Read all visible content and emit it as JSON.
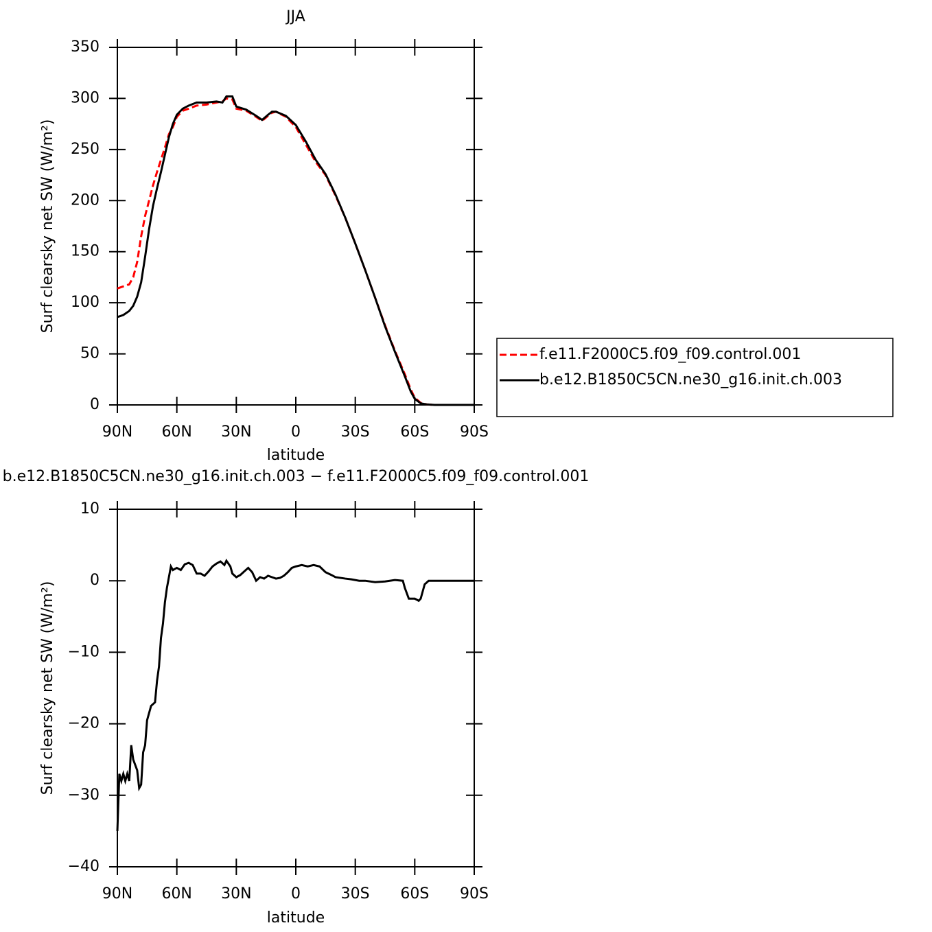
{
  "chart_data": [
    {
      "type": "line",
      "title": "JJA",
      "xlabel": "latitude",
      "ylabel": "Surf clearsky net SW (W/m²)",
      "x": [
        90,
        87,
        84,
        82,
        80,
        78,
        76,
        74,
        72,
        70,
        68,
        66,
        64,
        62,
        60,
        57,
        54,
        50,
        45,
        40,
        37,
        35,
        32,
        30,
        25,
        20,
        17,
        14,
        12,
        10,
        5,
        0,
        -5,
        -10,
        -15,
        -20,
        -25,
        -30,
        -35,
        -40,
        -45,
        -50,
        -55,
        -58,
        -60,
        -63,
        -66,
        -70,
        -80,
        -90
      ],
      "xlim": [
        90,
        -90
      ],
      "xticks": [
        {
          "value": 90,
          "label": "90N"
        },
        {
          "value": 60,
          "label": "60N"
        },
        {
          "value": 30,
          "label": "30N"
        },
        0,
        {
          "value": -30,
          "label": "30S"
        },
        {
          "value": -60,
          "label": "60S"
        },
        {
          "value": -90,
          "label": "90S"
        }
      ],
      "ylim": [
        0,
        350
      ],
      "yticks": [
        0,
        50,
        100,
        150,
        200,
        250,
        300,
        350
      ],
      "legend": "right",
      "series": [
        {
          "name": "f.e11.F2000C5.f09_f09.control.001",
          "color": "#ff0000",
          "linestyle": "dashed",
          "values": [
            114,
            116,
            118,
            125,
            140,
            165,
            185,
            200,
            215,
            228,
            240,
            252,
            265,
            272,
            282,
            288,
            290,
            293,
            294,
            296,
            297,
            300,
            299,
            290,
            288,
            282,
            278,
            283,
            286,
            287,
            282,
            272,
            255,
            238,
            225,
            205,
            183,
            158,
            132,
            105,
            78,
            53,
            30,
            15,
            7,
            2,
            0.5,
            0,
            0,
            0
          ]
        },
        {
          "name": "b.e12.B1850C5CN.ne30_g16.init.ch.003",
          "color": "#000000",
          "linestyle": "solid",
          "values": [
            86,
            88,
            92,
            97,
            106,
            120,
            145,
            172,
            195,
            212,
            228,
            245,
            262,
            275,
            284,
            290,
            293,
            296,
            296,
            297,
            296,
            302,
            302,
            292,
            289,
            283,
            279,
            284,
            287,
            287,
            283,
            274,
            258,
            240,
            226,
            206,
            183,
            158,
            132,
            105,
            77,
            52,
            28,
            13,
            6,
            1.5,
            0.5,
            0,
            0,
            0
          ]
        }
      ]
    },
    {
      "type": "line",
      "title": "b.e12.B1850C5CN.ne30_g16.init.ch.003 − f.e11.F2000C5.f09_f09.control.001",
      "xlabel": "latitude",
      "ylabel": "Surf clearsky net SW (W/m²)",
      "x": [
        90,
        89,
        88,
        87,
        86,
        85,
        84,
        83,
        82,
        80,
        79,
        78,
        77,
        76,
        75,
        73,
        71,
        70,
        69,
        68,
        67,
        66,
        65,
        64,
        63,
        62,
        60,
        58,
        56,
        54,
        52,
        50,
        48,
        46,
        44,
        42,
        40,
        38,
        36,
        35,
        33,
        32,
        30,
        28,
        26,
        24,
        22,
        20,
        18,
        16,
        14,
        12,
        10,
        8,
        6,
        4,
        2,
        0,
        -3,
        -6,
        -9,
        -12,
        -15,
        -18,
        -20,
        -25,
        -28,
        -32,
        -35,
        -40,
        -45,
        -50,
        -54,
        -55,
        -57,
        -60,
        -62,
        -63,
        -65,
        -67,
        -70,
        -80,
        -90
      ],
      "xlim": [
        90,
        -90
      ],
      "xticks": [
        {
          "value": 90,
          "label": "90N"
        },
        {
          "value": 60,
          "label": "60N"
        },
        {
          "value": 30,
          "label": "30N"
        },
        0,
        {
          "value": -30,
          "label": "30S"
        },
        {
          "value": -60,
          "label": "60S"
        },
        {
          "value": -90,
          "label": "90S"
        }
      ],
      "ylim": [
        -40,
        10
      ],
      "yticks": [
        {
          "value": -40,
          "label": "−40"
        },
        {
          "value": -30,
          "label": "−30"
        },
        {
          "value": -20,
          "label": "−20"
        },
        {
          "value": -10,
          "label": "−10"
        },
        0,
        10
      ],
      "series": [
        {
          "color": "#000000",
          "linestyle": "solid",
          "values": [
            -35,
            -27,
            -28,
            -27,
            -28,
            -27,
            -28,
            -23,
            -25,
            -26.5,
            -29,
            -28.5,
            -24,
            -23,
            -19.5,
            -17.5,
            -17,
            -14,
            -12,
            -8,
            -6,
            -3,
            -1,
            0.5,
            2,
            1.5,
            1.8,
            1.5,
            2.3,
            2.5,
            2.2,
            1.0,
            1.0,
            0.7,
            1.3,
            2.0,
            2.4,
            2.7,
            2.2,
            2.8,
            2.0,
            1.0,
            0.5,
            0.8,
            1.3,
            1.8,
            1.2,
            0,
            0.5,
            0.3,
            0.7,
            0.5,
            0.3,
            0.4,
            0.7,
            1.2,
            1.8,
            2.0,
            2.2,
            2.0,
            2.2,
            2.0,
            1.2,
            0.8,
            0.5,
            0.3,
            0.2,
            0,
            0,
            -0.2,
            -0.1,
            0.1,
            0,
            -1.0,
            -2.5,
            -2.5,
            -2.8,
            -2.5,
            -0.5,
            0,
            0,
            0,
            0
          ]
        }
      ]
    }
  ]
}
